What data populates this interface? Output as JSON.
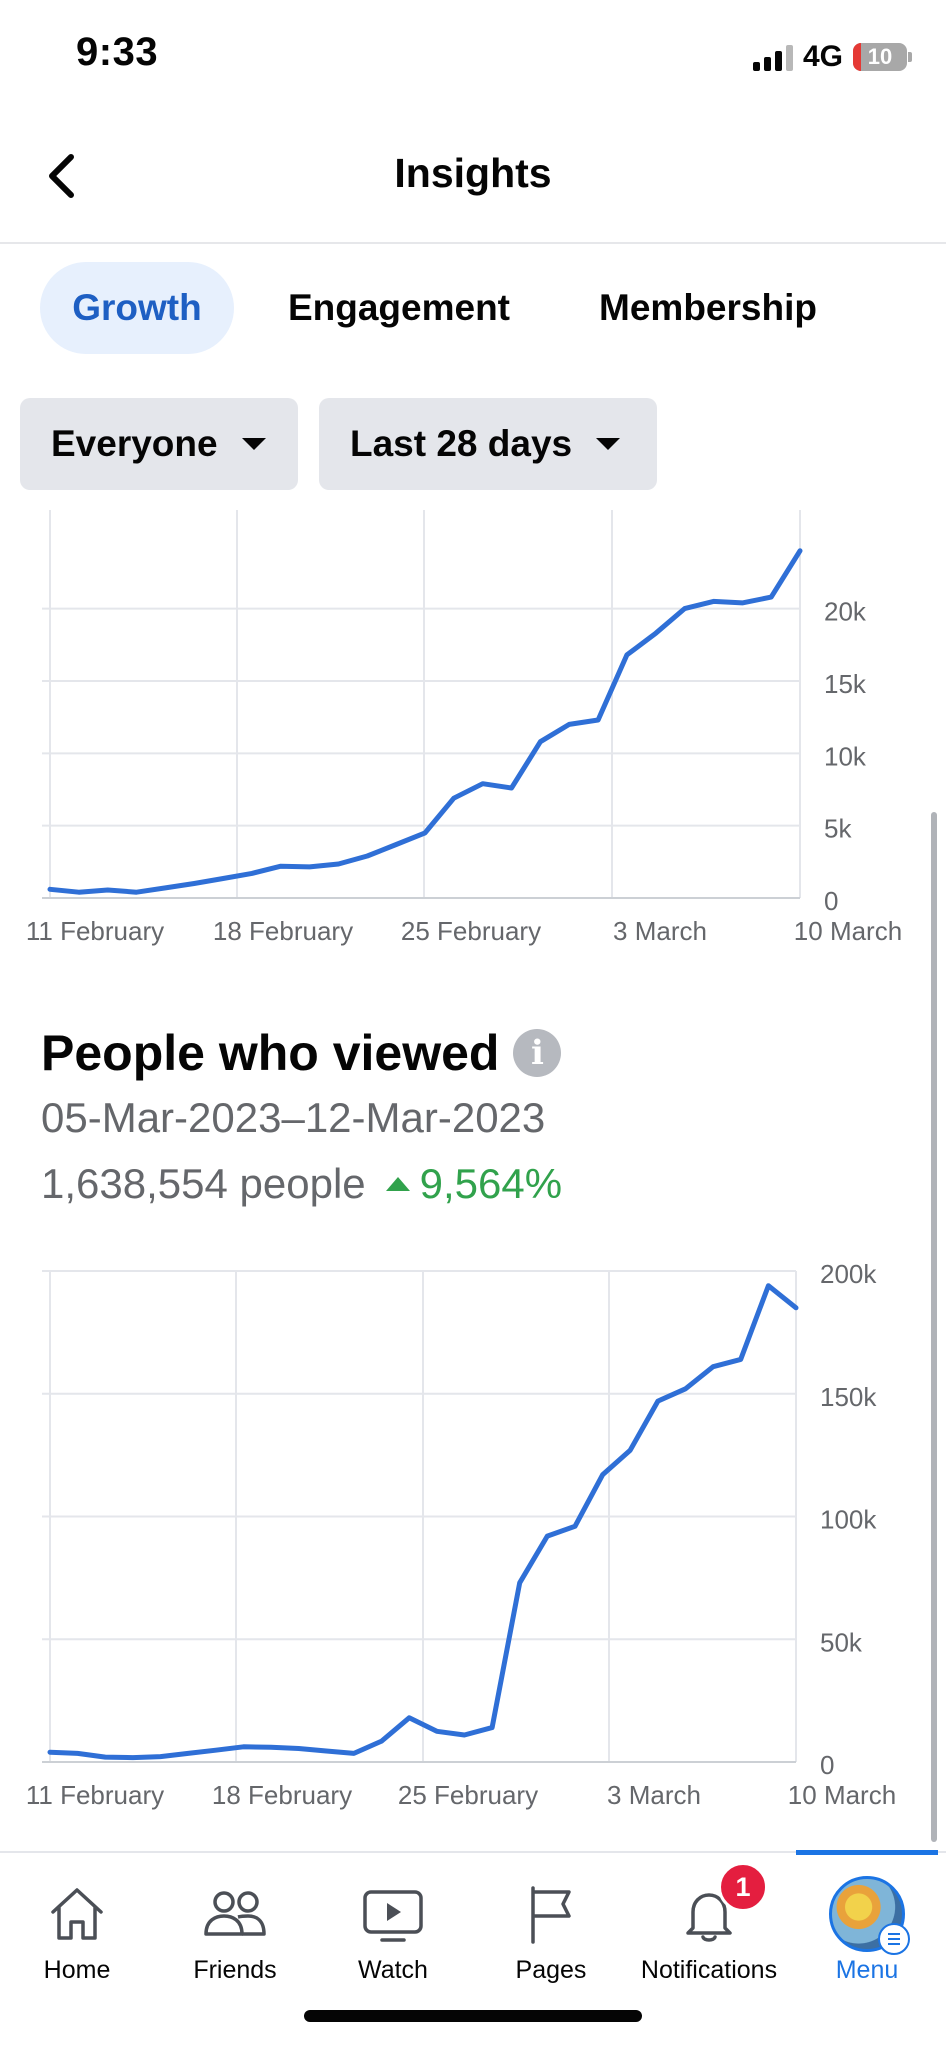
{
  "status_bar": {
    "time": "9:33",
    "network": "4G",
    "battery": "10"
  },
  "header": {
    "title": "Insights",
    "back_icon": "chevron-left-icon"
  },
  "tabs": [
    {
      "label": "Growth",
      "active": true
    },
    {
      "label": "Engagement",
      "active": false
    },
    {
      "label": "Membership",
      "active": false
    }
  ],
  "filters": {
    "audience": "Everyone",
    "period": "Last 28 days"
  },
  "section": {
    "title": "People who viewed",
    "date_range": "05-Mar-2023–12-Mar-2023",
    "people_count": "1,638,554 people",
    "change": "9,564%"
  },
  "chart_data": [
    {
      "type": "line",
      "color": "#2f6fd6",
      "x_tick_labels": [
        "11 February",
        "18 February",
        "25 February",
        "3 March",
        "10 March"
      ],
      "y_tick_labels": [
        "0",
        "5k",
        "10k",
        "15k",
        "20k"
      ],
      "ylim": [
        0,
        23500
      ],
      "grid": true,
      "values": [
        600,
        400,
        550,
        400,
        700,
        1000,
        1350,
        1700,
        2200,
        2150,
        2350,
        2900,
        3700,
        4500,
        6900,
        7900,
        7600,
        10800,
        12000,
        12300,
        16800,
        18300,
        20000,
        20500,
        20400,
        20800,
        24000
      ]
    },
    {
      "type": "line",
      "color": "#2f6fd6",
      "x_tick_labels": [
        "11 February",
        "18 February",
        "25 February",
        "3 March",
        "10 March"
      ],
      "y_tick_labels": [
        "0",
        "50k",
        "100k",
        "150k",
        "200k"
      ],
      "ylim": [
        0,
        200000
      ],
      "grid": true,
      "values": [
        4000,
        3500,
        2000,
        1800,
        2200,
        3500,
        4800,
        6200,
        6000,
        5500,
        4500,
        3500,
        8500,
        18000,
        12500,
        11000,
        14000,
        73000,
        92000,
        96000,
        117000,
        127000,
        147000,
        152000,
        161000,
        164000,
        194000,
        185000
      ]
    }
  ],
  "nav": {
    "items": [
      {
        "label": "Home",
        "icon": "home-icon"
      },
      {
        "label": "Friends",
        "icon": "friends-icon"
      },
      {
        "label": "Watch",
        "icon": "watch-icon"
      },
      {
        "label": "Pages",
        "icon": "flag-icon"
      },
      {
        "label": "Notifications",
        "icon": "bell-icon",
        "badge": "1"
      },
      {
        "label": "Menu",
        "icon": "avatar-menu-icon",
        "active": true
      }
    ]
  },
  "colors": {
    "accent": "#1b74e4",
    "positive": "#31a24c",
    "badge": "#e41e3f",
    "line": "#2f6fd6"
  }
}
